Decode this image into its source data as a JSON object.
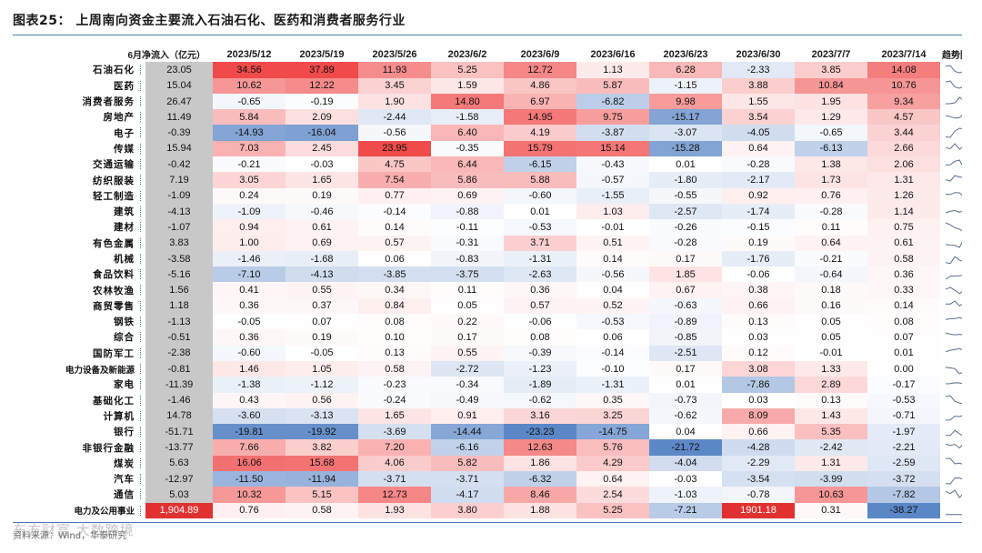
{
  "title": "图表25：  上周南向资金主要流入石油石化、医药和消费者服务行业",
  "table": {
    "corner_label": "6月净流入（亿元）",
    "columns": [
      "2023/5/12",
      "2023/5/19",
      "2023/5/26",
      "2023/6/2",
      "2023/6/9",
      "2023/6/16",
      "2023/6/23",
      "2023/6/30",
      "2023/7/7",
      "2023/7/14"
    ],
    "trend_label": "趋势图",
    "rows": [
      {
        "name": "石油石化",
        "base": "23.05",
        "values": [
          "34.56",
          "37.89",
          "11.93",
          "5.25",
          "12.72",
          "1.13",
          "6.28",
          "-2.33",
          "3.85",
          "14.08"
        ]
      },
      {
        "name": "医药",
        "base": "15.04",
        "values": [
          "10.62",
          "12.22",
          "3.45",
          "1.59",
          "4.86",
          "5.87",
          "-1.15",
          "3.88",
          "10.84",
          "10.76"
        ]
      },
      {
        "name": "消费者服务",
        "base": "26.47",
        "values": [
          "-0.65",
          "-0.19",
          "1.90",
          "14.80",
          "6.97",
          "-6.82",
          "9.98",
          "1.55",
          "1.95",
          "9.34"
        ]
      },
      {
        "name": "房地产",
        "base": "11.49",
        "values": [
          "5.84",
          "2.09",
          "-2.44",
          "-1.58",
          "14.95",
          "9.75",
          "-15.17",
          "3.54",
          "1.29",
          "4.57"
        ]
      },
      {
        "name": "电子",
        "base": "-0.39",
        "values": [
          "-14.93",
          "-16.04",
          "-0.56",
          "6.40",
          "4.19",
          "-3.87",
          "-3.07",
          "-4.05",
          "-0.65",
          "3.44"
        ]
      },
      {
        "name": "传媒",
        "base": "15.94",
        "values": [
          "7.03",
          "2.45",
          "23.95",
          "-0.35",
          "15.79",
          "15.14",
          "-15.28",
          "0.64",
          "-6.13",
          "2.66"
        ]
      },
      {
        "name": "交通运输",
        "base": "-0.42",
        "values": [
          "-0.21",
          "-0.03",
          "4.75",
          "6.44",
          "-6.15",
          "-0.43",
          "0.01",
          "-0.28",
          "1.38",
          "2.06"
        ]
      },
      {
        "name": "纺织服装",
        "base": "7.19",
        "values": [
          "3.05",
          "1.65",
          "7.54",
          "5.86",
          "5.88",
          "-0.57",
          "-1.80",
          "-2.17",
          "1.73",
          "1.31"
        ]
      },
      {
        "name": "轻工制造",
        "base": "-1.09",
        "values": [
          "0.24",
          "0.19",
          "0.77",
          "0.69",
          "-0.60",
          "-1.55",
          "-0.55",
          "0.92",
          "0.76",
          "1.26"
        ]
      },
      {
        "name": "建筑",
        "base": "-4.13",
        "values": [
          "-1.09",
          "-0.46",
          "-0.14",
          "-0.88",
          "0.01",
          "1.03",
          "-2.57",
          "-1.74",
          "-0.28",
          "1.14"
        ]
      },
      {
        "name": "建材",
        "base": "-1.07",
        "values": [
          "0.94",
          "0.61",
          "0.14",
          "-0.11",
          "-0.53",
          "-0.01",
          "-0.26",
          "-0.15",
          "0.11",
          "0.75"
        ]
      },
      {
        "name": "有色金属",
        "base": "3.83",
        "values": [
          "1.00",
          "0.69",
          "0.57",
          "-0.31",
          "3.71",
          "0.51",
          "-0.28",
          "0.19",
          "0.64",
          "0.61"
        ]
      },
      {
        "name": "机械",
        "base": "-3.58",
        "values": [
          "-1.46",
          "-1.68",
          "0.06",
          "-0.83",
          "-1.31",
          "0.14",
          "0.17",
          "-1.76",
          "-0.21",
          "0.58"
        ]
      },
      {
        "name": "食品饮料",
        "base": "-5.16",
        "values": [
          "-7.10",
          "-4.13",
          "-3.85",
          "-3.75",
          "-2.63",
          "-0.56",
          "1.85",
          "-0.06",
          "-0.64",
          "0.36"
        ]
      },
      {
        "name": "农林牧渔",
        "base": "1.56",
        "values": [
          "0.41",
          "0.55",
          "0.34",
          "0.11",
          "0.36",
          "0.04",
          "0.67",
          "0.38",
          "0.18",
          "0.33"
        ]
      },
      {
        "name": "商贸零售",
        "base": "1.18",
        "values": [
          "0.36",
          "0.37",
          "0.84",
          "0.05",
          "0.57",
          "0.52",
          "-0.63",
          "0.66",
          "0.16",
          "0.14"
        ]
      },
      {
        "name": "钢铁",
        "base": "-1.13",
        "values": [
          "-0.05",
          "0.07",
          "0.08",
          "0.22",
          "-0.06",
          "-0.53",
          "-0.89",
          "0.13",
          "0.05",
          "0.08"
        ]
      },
      {
        "name": "综合",
        "base": "-0.51",
        "values": [
          "0.36",
          "0.19",
          "0.10",
          "0.17",
          "0.08",
          "0.06",
          "-0.85",
          "0.03",
          "0.05",
          "0.07"
        ]
      },
      {
        "name": "国防军工",
        "base": "-2.38",
        "values": [
          "-0.60",
          "-0.05",
          "0.13",
          "0.55",
          "-0.39",
          "-0.14",
          "-2.51",
          "0.12",
          "-0.01",
          "0.01"
        ]
      },
      {
        "name": "电力设备及新能源",
        "base": "-0.81",
        "values": [
          "1.46",
          "1.05",
          "0.58",
          "-2.72",
          "-1.23",
          "-0.10",
          "0.17",
          "3.08",
          "1.33",
          "0.00"
        ]
      },
      {
        "name": "家电",
        "base": "-11.39",
        "values": [
          "-1.38",
          "-1.12",
          "-0.23",
          "-0.34",
          "-1.89",
          "-1.31",
          "0.01",
          "-7.86",
          "2.89",
          "-0.17"
        ]
      },
      {
        "name": "基础化工",
        "base": "-1.46",
        "values": [
          "0.43",
          "0.56",
          "-0.24",
          "-0.49",
          "-0.62",
          "0.35",
          "-0.73",
          "0.03",
          "0.13",
          "-0.53"
        ]
      },
      {
        "name": "计算机",
        "base": "14.78",
        "values": [
          "-3.60",
          "-3.13",
          "1.65",
          "0.91",
          "3.16",
          "3.25",
          "-0.62",
          "8.09",
          "1.43",
          "-0.71"
        ]
      },
      {
        "name": "银行",
        "base": "-51.71",
        "values": [
          "-19.81",
          "-19.92",
          "-3.69",
          "-14.44",
          "-23.23",
          "-14.75",
          "0.04",
          "0.66",
          "5.35",
          "-1.97"
        ]
      },
      {
        "name": "非银行金融",
        "base": "-13.77",
        "values": [
          "7.66",
          "3.82",
          "7.20",
          "-6.16",
          "12.63",
          "5.76",
          "-21.72",
          "-4.28",
          "-2.42",
          "-2.21"
        ]
      },
      {
        "name": "煤炭",
        "base": "5.63",
        "values": [
          "16.06",
          "15.68",
          "4.06",
          "5.82",
          "1.86",
          "4.29",
          "-4.04",
          "-2.29",
          "1.31",
          "-2.59"
        ]
      },
      {
        "name": "汽车",
        "base": "-12.97",
        "values": [
          "-11.50",
          "-11.94",
          "-3.71",
          "-3.71",
          "-6.32",
          "0.64",
          "-0.03",
          "-3.54",
          "-3.99",
          "-3.72"
        ]
      },
      {
        "name": "通信",
        "base": "5.03",
        "values": [
          "10.32",
          "5.15",
          "12.73",
          "-4.17",
          "8.46",
          "2.54",
          "-1.03",
          "-0.78",
          "10.63",
          "-7.82"
        ]
      },
      {
        "name": "电力及公用事业",
        "base": "1,904.89",
        "values": [
          "0.76",
          "0.58",
          "1.93",
          "3.80",
          "1.88",
          "5.25",
          "-7.21",
          "1901.18",
          "0.31",
          "-38.27"
        ]
      }
    ]
  },
  "source": "资料来源：Wind，华泰研究",
  "watermark": "东方财富 大数跨境",
  "colors": {
    "pos_strong": "#f04a4a",
    "neg_strong": "#5b87c7",
    "neutral": "#ffffff",
    "base_gray": "#c8c8c8",
    "base_hot": "#e03030",
    "trend_line": "#5a6f8f",
    "rule": "#4a7ab0"
  }
}
